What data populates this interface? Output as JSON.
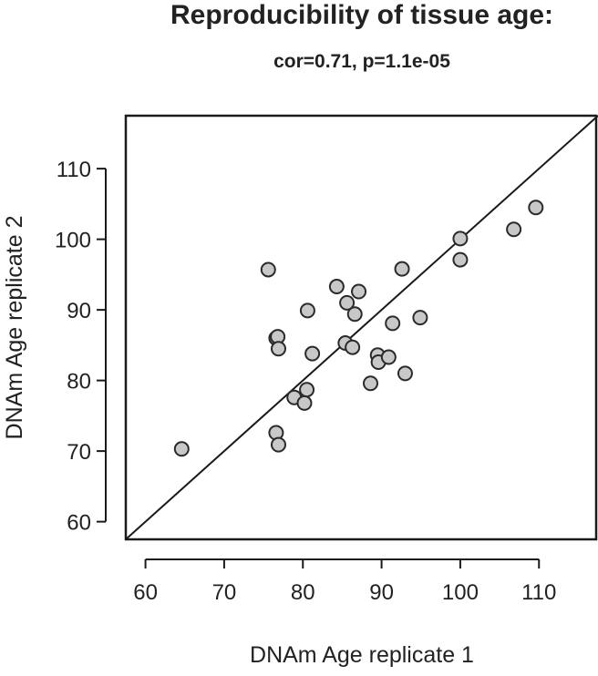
{
  "chart_data": {
    "type": "scatter",
    "title": "Reproducibility of tissue age:",
    "subtitle": "cor=0.71, p=1.1e-05",
    "xlabel": "DNAm Age replicate 1",
    "ylabel": "DNAm Age replicate 2",
    "xlim": [
      57.5,
      117.5
    ],
    "ylim": [
      57.5,
      117.5
    ],
    "xticks": [
      60,
      70,
      80,
      90,
      100,
      110
    ],
    "yticks": [
      60,
      70,
      80,
      90,
      100,
      110
    ],
    "reference_line": "identity (y = x)",
    "grid": false,
    "point_color": "#c8c8c8",
    "point_stroke": "#2a2a2a",
    "points": [
      {
        "x": 64.6,
        "y": 70.3
      },
      {
        "x": 75.6,
        "y": 95.7
      },
      {
        "x": 76.6,
        "y": 86.0
      },
      {
        "x": 76.8,
        "y": 86.2
      },
      {
        "x": 76.6,
        "y": 72.6
      },
      {
        "x": 76.9,
        "y": 84.5
      },
      {
        "x": 76.9,
        "y": 70.9
      },
      {
        "x": 78.9,
        "y": 77.6
      },
      {
        "x": 80.2,
        "y": 76.8
      },
      {
        "x": 80.5,
        "y": 78.7
      },
      {
        "x": 80.6,
        "y": 89.9
      },
      {
        "x": 81.2,
        "y": 83.8
      },
      {
        "x": 84.3,
        "y": 93.3
      },
      {
        "x": 85.4,
        "y": 85.3
      },
      {
        "x": 85.6,
        "y": 91.0
      },
      {
        "x": 86.3,
        "y": 84.7
      },
      {
        "x": 86.6,
        "y": 89.4
      },
      {
        "x": 87.1,
        "y": 92.6
      },
      {
        "x": 88.6,
        "y": 79.6
      },
      {
        "x": 89.5,
        "y": 83.6
      },
      {
        "x": 89.6,
        "y": 82.6
      },
      {
        "x": 90.9,
        "y": 83.3
      },
      {
        "x": 91.4,
        "y": 88.1
      },
      {
        "x": 92.6,
        "y": 95.8
      },
      {
        "x": 93.0,
        "y": 81.0
      },
      {
        "x": 94.9,
        "y": 88.9
      },
      {
        "x": 100.0,
        "y": 100.1
      },
      {
        "x": 100.0,
        "y": 97.1
      },
      {
        "x": 106.8,
        "y": 101.4
      },
      {
        "x": 109.6,
        "y": 104.5
      }
    ]
  }
}
